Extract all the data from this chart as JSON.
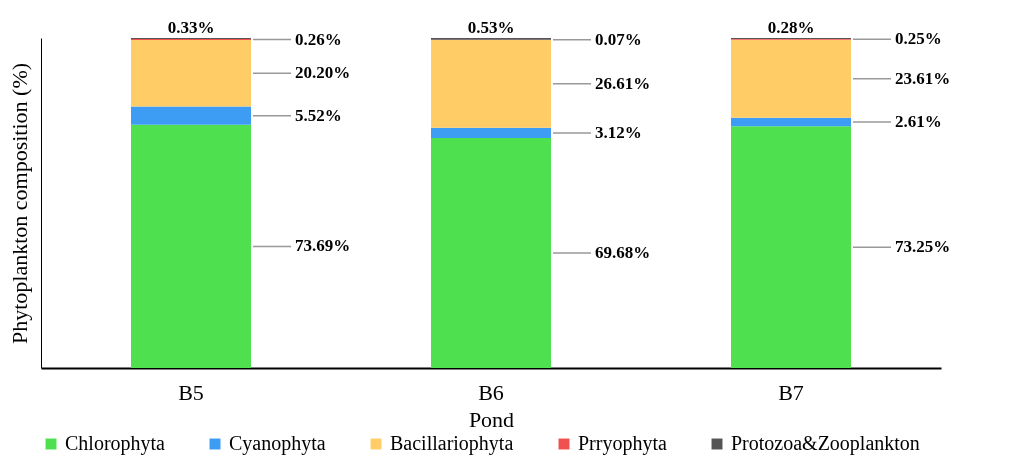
{
  "chart_data": {
    "type": "bar",
    "stacked": true,
    "xlabel": "Pond",
    "ylabel": "Phytoplankton composition (%)",
    "categories": [
      "B5",
      "B6",
      "B7"
    ],
    "ylim": [
      0,
      100
    ],
    "tick_labels": "x",
    "legend": "bottom",
    "series": [
      {
        "name": "Chlorophyta",
        "color": "#4ee04e",
        "values": [
          73.69,
          69.68,
          73.25
        ],
        "value_labels": [
          "73.69%",
          "69.68%",
          "73.25%"
        ]
      },
      {
        "name": "Cyanophyta",
        "color": "#3d9df5",
        "values": [
          5.52,
          3.12,
          2.61
        ],
        "value_labels": [
          "5.52%",
          "3.12%",
          "2.61%"
        ]
      },
      {
        "name": "Bacillariophyta",
        "color": "#ffcc66",
        "values": [
          20.2,
          26.61,
          23.61
        ],
        "value_labels": [
          "20.20%",
          "26.61%",
          "23.61%"
        ]
      },
      {
        "name": "Prryophyta",
        "color": "#f05050",
        "values": [
          0.26,
          0.07,
          0.25
        ],
        "value_labels": [
          "0.26%",
          "0.07%",
          "0.25%"
        ]
      },
      {
        "name": "Protozoa&Zooplankton",
        "color": "#555555",
        "values": [
          0.33,
          0.53,
          0.28
        ],
        "value_labels": [
          "0.33%",
          "0.53%",
          "0.28%"
        ]
      }
    ]
  }
}
